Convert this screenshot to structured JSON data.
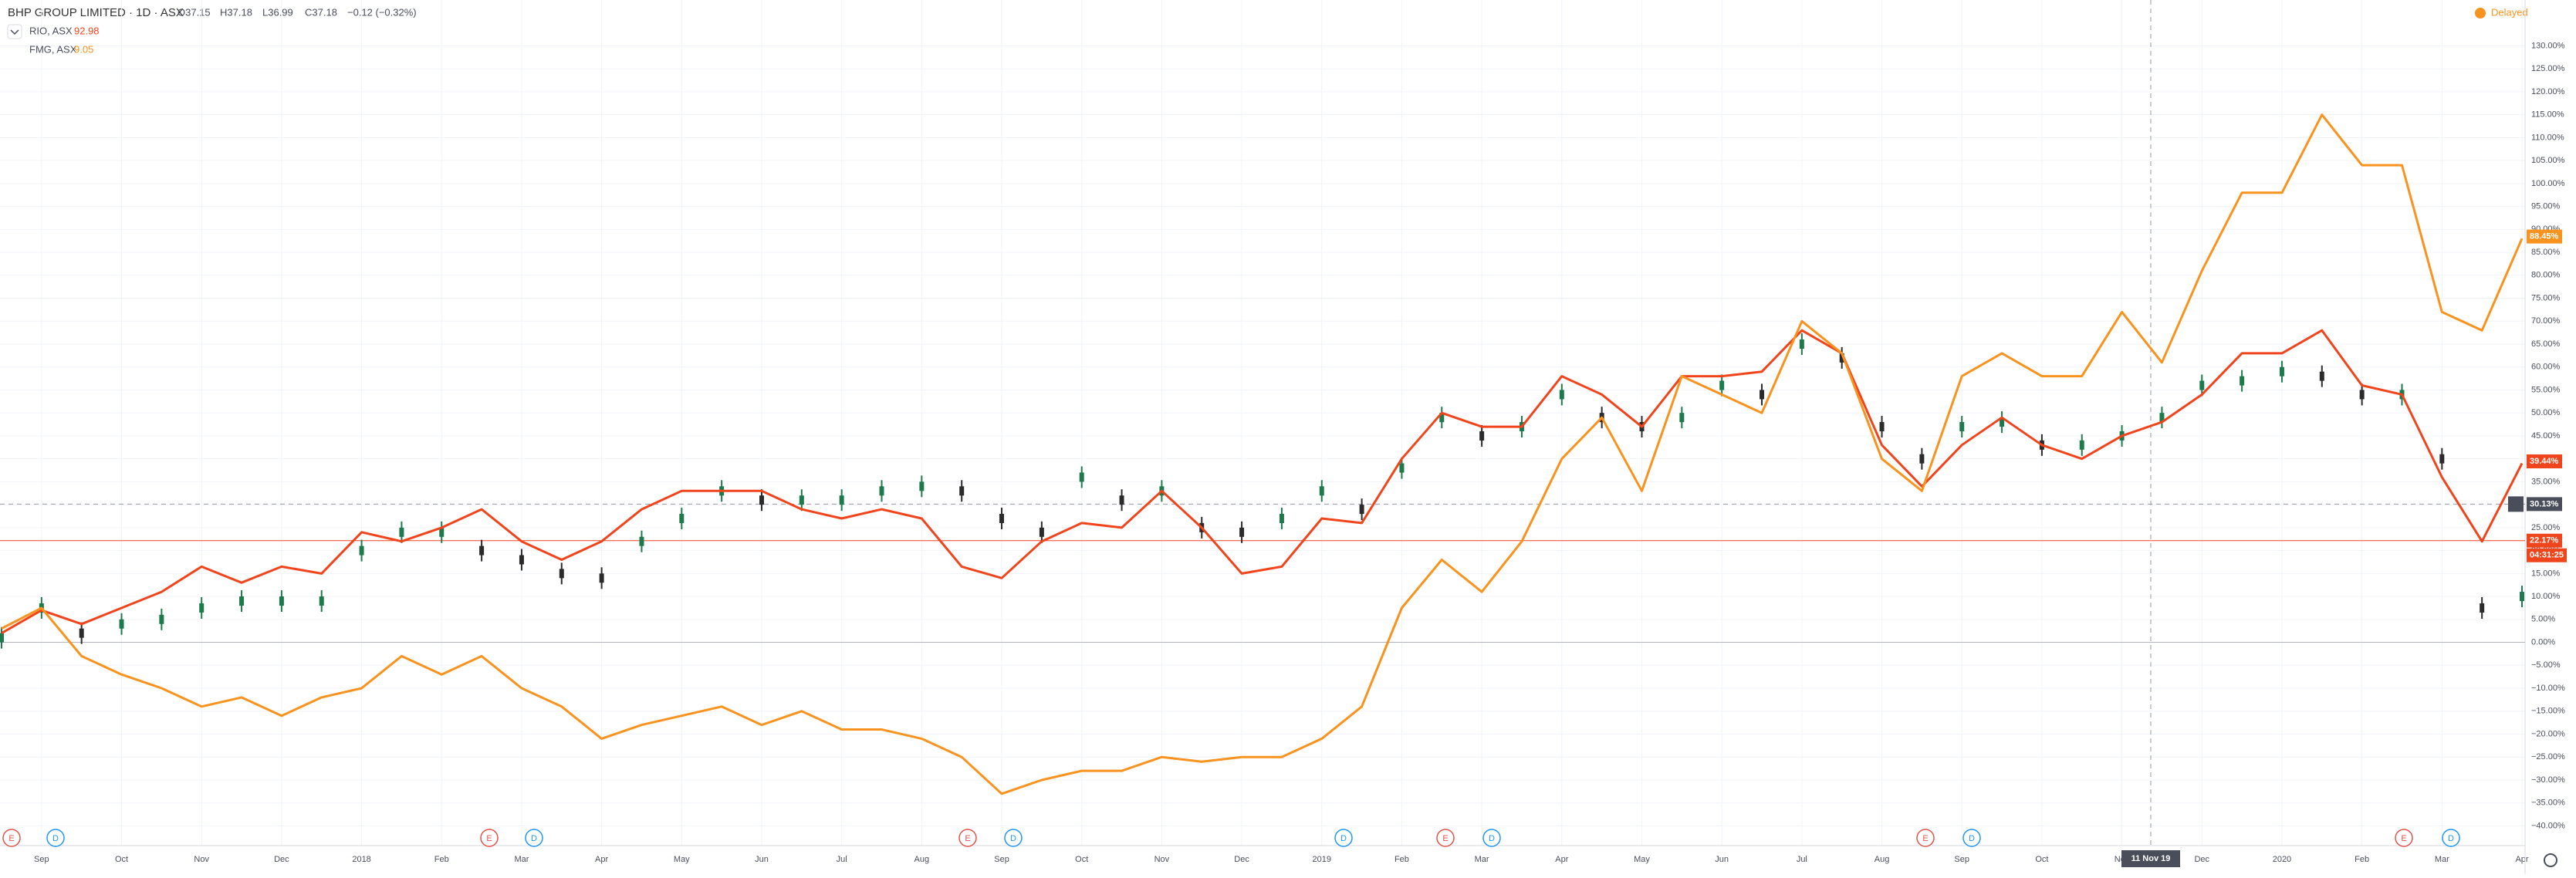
{
  "header": {
    "title": "BHP GROUP LIMITED · 1D · ASX",
    "open": "O37.15",
    "high": "H37.18",
    "low": "L36.99",
    "close": "C37.18",
    "change": "−0.12 (−0.32%)",
    "status": "Delayed"
  },
  "chart_data": {
    "type": "line",
    "categories": [
      null,
      "Sep",
      null,
      "Oct",
      null,
      "Nov",
      null,
      "Dec",
      null,
      "2018",
      null,
      "Feb",
      null,
      "Mar",
      null,
      "Apr",
      null,
      "May",
      null,
      "Jun",
      null,
      "Jul",
      null,
      "Aug",
      null,
      "Sep",
      null,
      "Oct",
      null,
      "Nov",
      null,
      "Dec",
      null,
      "2019",
      null,
      "Feb",
      null,
      "Mar",
      null,
      "Apr",
      null,
      "May",
      null,
      "Jun",
      null,
      "Jul",
      null,
      "Aug",
      null,
      "Sep",
      null,
      "Oct",
      null,
      "Nov",
      null,
      "Dec",
      null,
      "2020",
      null,
      "Feb",
      null,
      "Mar",
      null,
      "Apr"
    ],
    "series": [
      {
        "name": "BHP GROUP LIMITED · 1D · ASX",
        "style": "bars",
        "color": "#2b2b2b",
        "values": [
          1,
          7.5,
          2,
          4,
          5,
          7.5,
          9,
          9,
          9,
          20,
          24,
          24,
          20,
          18,
          15,
          14,
          22,
          27,
          33,
          31,
          31,
          31,
          33,
          34,
          33,
          27,
          24,
          36,
          31,
          33,
          25,
          24,
          27,
          33,
          29,
          38,
          49,
          45,
          47,
          54,
          49,
          47,
          49,
          56,
          54,
          65,
          62,
          47,
          40,
          47,
          48,
          43,
          43,
          45,
          49,
          56,
          57,
          59,
          58,
          54,
          54,
          40,
          7.5,
          10
        ]
      },
      {
        "name": "RIO, ASX",
        "last": "92.98",
        "color": "#f0451c",
        "values": [
          2,
          7,
          4,
          7.5,
          11,
          16.5,
          13,
          16.5,
          15,
          24,
          22,
          25,
          29,
          22,
          18,
          22,
          29,
          33,
          33,
          33,
          29,
          27,
          29,
          27,
          16.5,
          14,
          22,
          26,
          25,
          33,
          25,
          15,
          16.5,
          27,
          26,
          40,
          50,
          47,
          47,
          58,
          54,
          47,
          58,
          58,
          59,
          68,
          63,
          43,
          34,
          43,
          49,
          43,
          40,
          45,
          48,
          54,
          63,
          63,
          68,
          56,
          54,
          36,
          22,
          39
        ]
      },
      {
        "name": "FMG, ASX",
        "last": "9.05",
        "color": "#f7931e",
        "values": [
          3,
          7.5,
          -3,
          -7,
          -10,
          -14,
          -12,
          -16,
          -12,
          -10,
          -3,
          -7,
          -3,
          -10,
          -14,
          -21,
          -18,
          -16,
          -14,
          -18,
          -15,
          -19,
          -19,
          -21,
          -25,
          -33,
          -30,
          -28,
          -28,
          -25,
          -26,
          -25,
          -25,
          -21,
          -14,
          7.5,
          18,
          11,
          22,
          40,
          49,
          33,
          58,
          54,
          50,
          70,
          63,
          40,
          33,
          58,
          63,
          58,
          58,
          72,
          61,
          81,
          98,
          98,
          115,
          104,
          104,
          72,
          68,
          88
        ]
      }
    ],
    "ylim": [
      -44.3,
      140
    ],
    "yticks": [
      {
        "value": 130,
        "label": "130.00%"
      },
      {
        "value": 125,
        "label": "125.00%"
      },
      {
        "value": 120,
        "label": "120.00%"
      },
      {
        "value": 115,
        "label": "115.00%"
      },
      {
        "value": 110,
        "label": "110.00%"
      },
      {
        "value": 105,
        "label": "105.00%"
      },
      {
        "value": 100,
        "label": "100.00%"
      },
      {
        "value": 95,
        "label": "95.00%"
      },
      {
        "value": 90,
        "label": "90.00%"
      },
      {
        "value": 85,
        "label": "85.00%"
      },
      {
        "value": 80,
        "label": "80.00%"
      },
      {
        "value": 75,
        "label": "75.00%"
      },
      {
        "value": 70,
        "label": "70.00%"
      },
      {
        "value": 65,
        "label": "65.00%"
      },
      {
        "value": 60,
        "label": "60.00%"
      },
      {
        "value": 55,
        "label": "55.00%"
      },
      {
        "value": 50,
        "label": "50.00%"
      },
      {
        "value": 45,
        "label": "45.00%"
      },
      {
        "value": 40,
        "label": "40.00%"
      },
      {
        "value": 35,
        "label": "35.00%"
      },
      {
        "value": 30,
        "label": "30.00%"
      },
      {
        "value": 25,
        "label": "25.00%"
      },
      {
        "value": 20,
        "label": "20.00%"
      },
      {
        "value": 15,
        "label": "15.00%"
      },
      {
        "value": 10,
        "label": "10.00%"
      },
      {
        "value": 5,
        "label": "5.00%"
      },
      {
        "value": 0,
        "label": "0.00%"
      },
      {
        "value": -5,
        "label": "−5.00%"
      },
      {
        "value": -10,
        "label": "−10.00%"
      },
      {
        "value": -15,
        "label": "−15.00%"
      },
      {
        "value": -20,
        "label": "−20.00%"
      },
      {
        "value": -25,
        "label": "−25.00%"
      },
      {
        "value": -30,
        "label": "−30.00%"
      },
      {
        "value": -35,
        "label": "−35.00%"
      },
      {
        "value": -40,
        "label": "−40.00%"
      }
    ],
    "grid": true,
    "price_tags": [
      {
        "value": 88.45,
        "label": "88.45%",
        "color": "#f7931e"
      },
      {
        "value": 39.44,
        "label": "39.44%",
        "color": "#f0451c"
      },
      {
        "value": 30.13,
        "label": "30.13%",
        "color": "#4a4e5a"
      },
      {
        "value": 22.17,
        "label": "22.17%",
        "color": "#f0451c"
      }
    ],
    "countdown": "04:31:25",
    "crosshair_date": "11 Nov 19",
    "events": [
      "E",
      "D",
      "E",
      "D",
      "E",
      "D",
      "D",
      "E",
      "D",
      "E",
      "D",
      "E",
      "D"
    ]
  }
}
